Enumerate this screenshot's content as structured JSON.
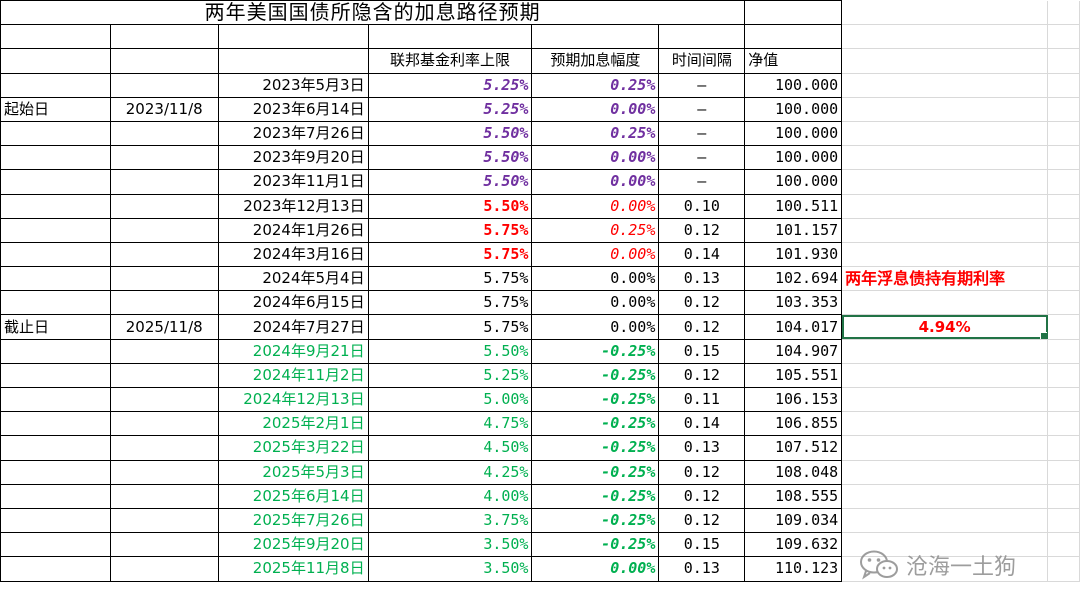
{
  "title": "两年美国国债所隐含的加息路径预期",
  "headers": {
    "fed_cap": "联邦基金利率上限",
    "expected": "预期加息幅度",
    "interval": "时间间隔",
    "nav": "净值"
  },
  "start_label": "起始日",
  "start_date": "2023/11/8",
  "end_label": "截止日",
  "end_date": "2025/11/8",
  "side_title": "两年浮息债持有期利率",
  "side_value": "4.94%",
  "watermark": "沧海一土狗",
  "colors": {
    "purple": "#7030a0",
    "red": "#ff0000",
    "green": "#00b050",
    "black": "#000000",
    "selection": "#217346"
  },
  "rows": [
    {
      "date": "2023年5月3日",
      "rate": "5.25%",
      "hike": "0.25%",
      "interval": "–",
      "nav": "100.000"
    },
    {
      "date": "2023年6月14日",
      "rate": "5.25%",
      "hike": "0.00%",
      "interval": "–",
      "nav": "100.000"
    },
    {
      "date": "2023年7月26日",
      "rate": "5.50%",
      "hike": "0.25%",
      "interval": "–",
      "nav": "100.000"
    },
    {
      "date": "2023年9月20日",
      "rate": "5.50%",
      "hike": "0.00%",
      "interval": "–",
      "nav": "100.000"
    },
    {
      "date": "2023年11月1日",
      "rate": "5.50%",
      "hike": "0.00%",
      "interval": "–",
      "nav": "100.000"
    },
    {
      "date": "2023年12月13日",
      "rate": "5.50%",
      "hike": "0.00%",
      "interval": "0.10",
      "nav": "100.511"
    },
    {
      "date": "2024年1月26日",
      "rate": "5.75%",
      "hike": "0.25%",
      "interval": "0.12",
      "nav": "101.157"
    },
    {
      "date": "2024年3月16日",
      "rate": "5.75%",
      "hike": "0.00%",
      "interval": "0.14",
      "nav": "101.930"
    },
    {
      "date": "2024年5月4日",
      "rate": "5.75%",
      "hike": "0.00%",
      "interval": "0.13",
      "nav": "102.694"
    },
    {
      "date": "2024年6月15日",
      "rate": "5.75%",
      "hike": "0.00%",
      "interval": "0.12",
      "nav": "103.353"
    },
    {
      "date": "2024年7月27日",
      "rate": "5.75%",
      "hike": "0.00%",
      "interval": "0.12",
      "nav": "104.017"
    },
    {
      "date": "2024年9月21日",
      "rate": "5.50%",
      "hike": "-0.25%",
      "interval": "0.15",
      "nav": "104.907"
    },
    {
      "date": "2024年11月2日",
      "rate": "5.25%",
      "hike": "-0.25%",
      "interval": "0.12",
      "nav": "105.551"
    },
    {
      "date": "2024年12月13日",
      "rate": "5.00%",
      "hike": "-0.25%",
      "interval": "0.11",
      "nav": "106.153"
    },
    {
      "date": "2025年2月1日",
      "rate": "4.75%",
      "hike": "-0.25%",
      "interval": "0.14",
      "nav": "106.855"
    },
    {
      "date": "2025年3月22日",
      "rate": "4.50%",
      "hike": "-0.25%",
      "interval": "0.13",
      "nav": "107.512"
    },
    {
      "date": "2025年5月3日",
      "rate": "4.25%",
      "hike": "-0.25%",
      "interval": "0.12",
      "nav": "108.048"
    },
    {
      "date": "2025年6月14日",
      "rate": "4.00%",
      "hike": "-0.25%",
      "interval": "0.12",
      "nav": "108.555"
    },
    {
      "date": "2025年7月26日",
      "rate": "3.75%",
      "hike": "-0.25%",
      "interval": "0.12",
      "nav": "109.034"
    },
    {
      "date": "2025年9月20日",
      "rate": "3.50%",
      "hike": "-0.25%",
      "interval": "0.15",
      "nav": "109.632"
    },
    {
      "date": "2025年11月8日",
      "rate": "3.50%",
      "hike": "0.00%",
      "interval": "0.13",
      "nav": "110.123"
    }
  ]
}
